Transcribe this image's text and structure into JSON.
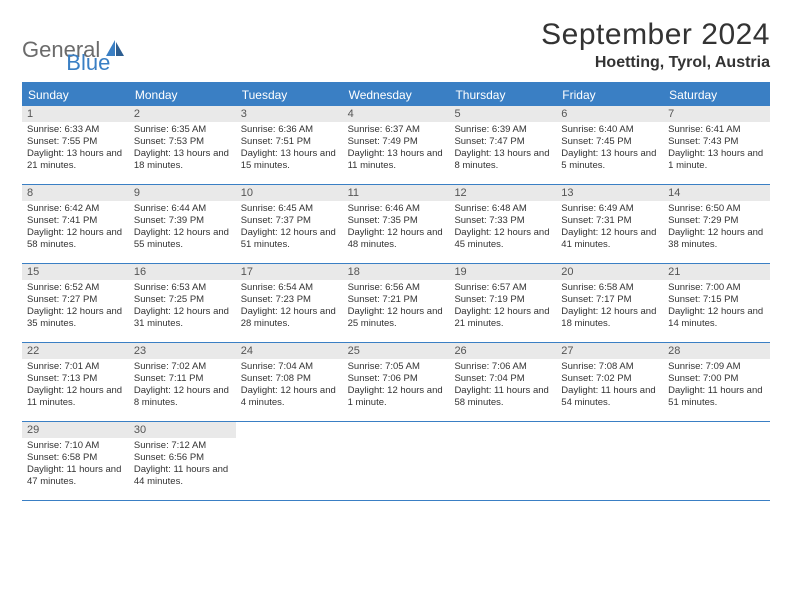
{
  "logo": {
    "part1": "General",
    "part2": "Blue"
  },
  "title": "September 2024",
  "location": "Hoetting, Tyrol, Austria",
  "colors": {
    "accent": "#3a7fc4",
    "daynum_bg": "#e9e9e9",
    "text": "#333333",
    "logo_gray": "#6b6b6b"
  },
  "weekdays": [
    "Sunday",
    "Monday",
    "Tuesday",
    "Wednesday",
    "Thursday",
    "Friday",
    "Saturday"
  ],
  "weeks": [
    [
      {
        "num": "1",
        "sunrise": "Sunrise: 6:33 AM",
        "sunset": "Sunset: 7:55 PM",
        "daylight": "Daylight: 13 hours and 21 minutes."
      },
      {
        "num": "2",
        "sunrise": "Sunrise: 6:35 AM",
        "sunset": "Sunset: 7:53 PM",
        "daylight": "Daylight: 13 hours and 18 minutes."
      },
      {
        "num": "3",
        "sunrise": "Sunrise: 6:36 AM",
        "sunset": "Sunset: 7:51 PM",
        "daylight": "Daylight: 13 hours and 15 minutes."
      },
      {
        "num": "4",
        "sunrise": "Sunrise: 6:37 AM",
        "sunset": "Sunset: 7:49 PM",
        "daylight": "Daylight: 13 hours and 11 minutes."
      },
      {
        "num": "5",
        "sunrise": "Sunrise: 6:39 AM",
        "sunset": "Sunset: 7:47 PM",
        "daylight": "Daylight: 13 hours and 8 minutes."
      },
      {
        "num": "6",
        "sunrise": "Sunrise: 6:40 AM",
        "sunset": "Sunset: 7:45 PM",
        "daylight": "Daylight: 13 hours and 5 minutes."
      },
      {
        "num": "7",
        "sunrise": "Sunrise: 6:41 AM",
        "sunset": "Sunset: 7:43 PM",
        "daylight": "Daylight: 13 hours and 1 minute."
      }
    ],
    [
      {
        "num": "8",
        "sunrise": "Sunrise: 6:42 AM",
        "sunset": "Sunset: 7:41 PM",
        "daylight": "Daylight: 12 hours and 58 minutes."
      },
      {
        "num": "9",
        "sunrise": "Sunrise: 6:44 AM",
        "sunset": "Sunset: 7:39 PM",
        "daylight": "Daylight: 12 hours and 55 minutes."
      },
      {
        "num": "10",
        "sunrise": "Sunrise: 6:45 AM",
        "sunset": "Sunset: 7:37 PM",
        "daylight": "Daylight: 12 hours and 51 minutes."
      },
      {
        "num": "11",
        "sunrise": "Sunrise: 6:46 AM",
        "sunset": "Sunset: 7:35 PM",
        "daylight": "Daylight: 12 hours and 48 minutes."
      },
      {
        "num": "12",
        "sunrise": "Sunrise: 6:48 AM",
        "sunset": "Sunset: 7:33 PM",
        "daylight": "Daylight: 12 hours and 45 minutes."
      },
      {
        "num": "13",
        "sunrise": "Sunrise: 6:49 AM",
        "sunset": "Sunset: 7:31 PM",
        "daylight": "Daylight: 12 hours and 41 minutes."
      },
      {
        "num": "14",
        "sunrise": "Sunrise: 6:50 AM",
        "sunset": "Sunset: 7:29 PM",
        "daylight": "Daylight: 12 hours and 38 minutes."
      }
    ],
    [
      {
        "num": "15",
        "sunrise": "Sunrise: 6:52 AM",
        "sunset": "Sunset: 7:27 PM",
        "daylight": "Daylight: 12 hours and 35 minutes."
      },
      {
        "num": "16",
        "sunrise": "Sunrise: 6:53 AM",
        "sunset": "Sunset: 7:25 PM",
        "daylight": "Daylight: 12 hours and 31 minutes."
      },
      {
        "num": "17",
        "sunrise": "Sunrise: 6:54 AM",
        "sunset": "Sunset: 7:23 PM",
        "daylight": "Daylight: 12 hours and 28 minutes."
      },
      {
        "num": "18",
        "sunrise": "Sunrise: 6:56 AM",
        "sunset": "Sunset: 7:21 PM",
        "daylight": "Daylight: 12 hours and 25 minutes."
      },
      {
        "num": "19",
        "sunrise": "Sunrise: 6:57 AM",
        "sunset": "Sunset: 7:19 PM",
        "daylight": "Daylight: 12 hours and 21 minutes."
      },
      {
        "num": "20",
        "sunrise": "Sunrise: 6:58 AM",
        "sunset": "Sunset: 7:17 PM",
        "daylight": "Daylight: 12 hours and 18 minutes."
      },
      {
        "num": "21",
        "sunrise": "Sunrise: 7:00 AM",
        "sunset": "Sunset: 7:15 PM",
        "daylight": "Daylight: 12 hours and 14 minutes."
      }
    ],
    [
      {
        "num": "22",
        "sunrise": "Sunrise: 7:01 AM",
        "sunset": "Sunset: 7:13 PM",
        "daylight": "Daylight: 12 hours and 11 minutes."
      },
      {
        "num": "23",
        "sunrise": "Sunrise: 7:02 AM",
        "sunset": "Sunset: 7:11 PM",
        "daylight": "Daylight: 12 hours and 8 minutes."
      },
      {
        "num": "24",
        "sunrise": "Sunrise: 7:04 AM",
        "sunset": "Sunset: 7:08 PM",
        "daylight": "Daylight: 12 hours and 4 minutes."
      },
      {
        "num": "25",
        "sunrise": "Sunrise: 7:05 AM",
        "sunset": "Sunset: 7:06 PM",
        "daylight": "Daylight: 12 hours and 1 minute."
      },
      {
        "num": "26",
        "sunrise": "Sunrise: 7:06 AM",
        "sunset": "Sunset: 7:04 PM",
        "daylight": "Daylight: 11 hours and 58 minutes."
      },
      {
        "num": "27",
        "sunrise": "Sunrise: 7:08 AM",
        "sunset": "Sunset: 7:02 PM",
        "daylight": "Daylight: 11 hours and 54 minutes."
      },
      {
        "num": "28",
        "sunrise": "Sunrise: 7:09 AM",
        "sunset": "Sunset: 7:00 PM",
        "daylight": "Daylight: 11 hours and 51 minutes."
      }
    ],
    [
      {
        "num": "29",
        "sunrise": "Sunrise: 7:10 AM",
        "sunset": "Sunset: 6:58 PM",
        "daylight": "Daylight: 11 hours and 47 minutes."
      },
      {
        "num": "30",
        "sunrise": "Sunrise: 7:12 AM",
        "sunset": "Sunset: 6:56 PM",
        "daylight": "Daylight: 11 hours and 44 minutes."
      },
      null,
      null,
      null,
      null,
      null
    ]
  ]
}
